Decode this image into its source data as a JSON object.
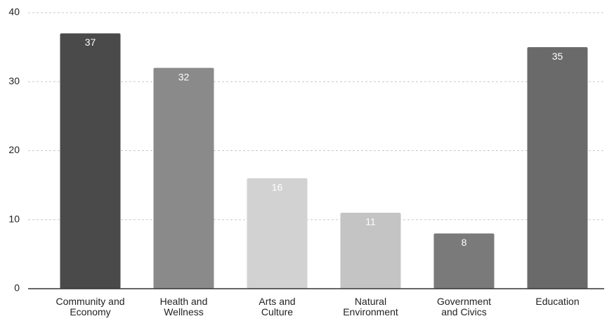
{
  "chart_data": {
    "type": "bar",
    "categories": [
      "Community and\nEconomy",
      "Health and\nWellness",
      "Arts and\nCulture",
      "Natural\nEnvironment",
      "Government\nand Civics",
      "Education"
    ],
    "values": [
      37,
      32,
      16,
      11,
      8,
      35
    ],
    "colors": [
      "#4a4a4a",
      "#8a8a8a",
      "#d2d2d2",
      "#c4c4c4",
      "#7a7a7a",
      "#6a6a6a"
    ],
    "ylim": [
      0,
      40
    ],
    "yticks": [
      0,
      10,
      20,
      30,
      40
    ],
    "grid": true
  }
}
